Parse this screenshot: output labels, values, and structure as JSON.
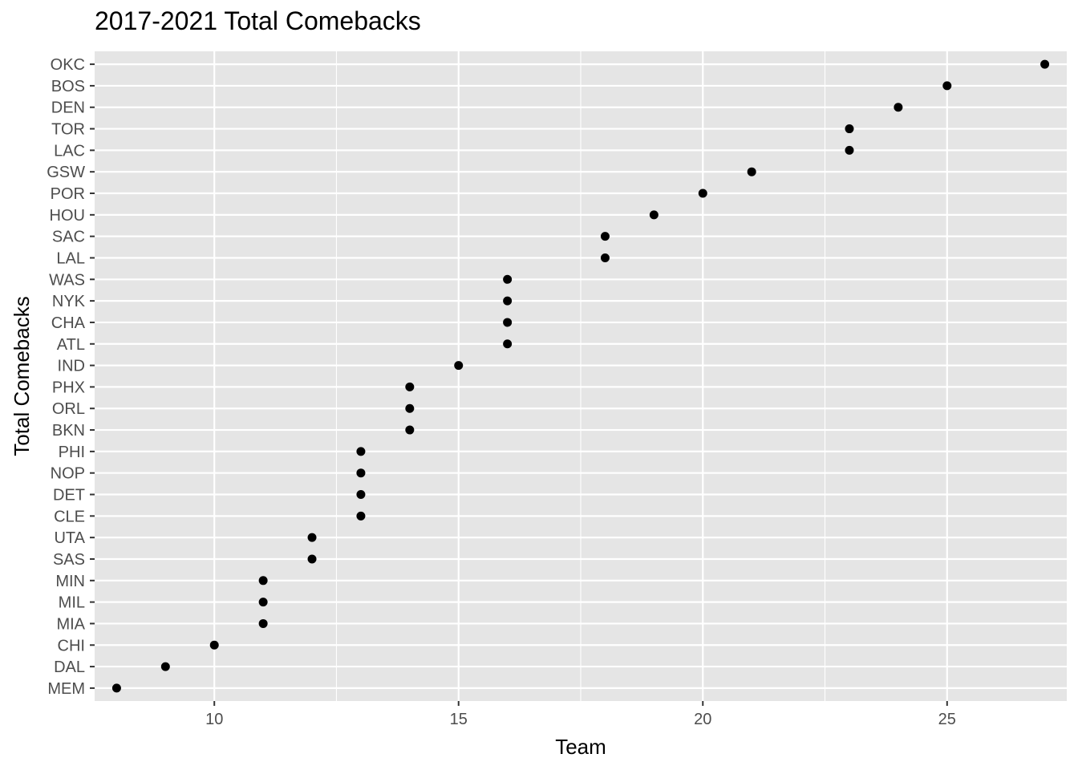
{
  "chart_data": {
    "type": "scatter",
    "title": "2017-2021 Total Comebacks",
    "xlabel": "Team",
    "ylabel": "Total Comebacks",
    "xlim": [
      7.55,
      27.45
    ],
    "x_ticks": [
      10,
      15,
      20,
      25
    ],
    "grid": true,
    "categories": [
      "MEM",
      "DAL",
      "CHI",
      "MIA",
      "MIL",
      "MIN",
      "SAS",
      "UTA",
      "CLE",
      "DET",
      "NOP",
      "PHI",
      "BKN",
      "ORL",
      "PHX",
      "IND",
      "ATL",
      "CHA",
      "NYK",
      "WAS",
      "LAL",
      "SAC",
      "HOU",
      "POR",
      "GSW",
      "LAC",
      "TOR",
      "DEN",
      "BOS",
      "OKC"
    ],
    "values": [
      8,
      9,
      10,
      11,
      11,
      11,
      12,
      12,
      13,
      13,
      13,
      13,
      14,
      14,
      14,
      15,
      16,
      16,
      16,
      16,
      18,
      18,
      19,
      20,
      21,
      23,
      23,
      24,
      25,
      27
    ],
    "colors": {
      "panel": "#e5e5e5",
      "grid": "#ffffff",
      "point": "#000000",
      "tick": "#4d4d4d"
    }
  }
}
